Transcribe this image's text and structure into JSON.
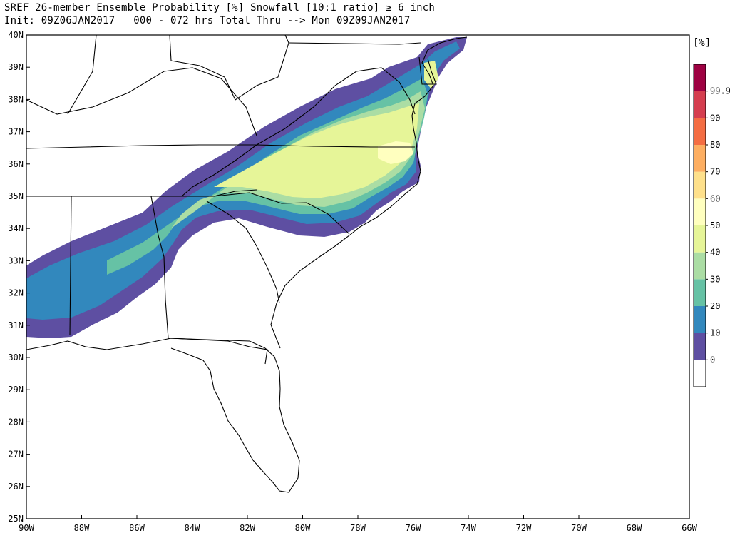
{
  "header": {
    "line1": "SREF 26-member Ensemble Probability [%] Snowfall [10:1 ratio] ≥ 6 inch",
    "line2": "Init: 09Z06JAN2017   000 - 072 hrs Total Thru --> Mon 09Z09JAN2017"
  },
  "map": {
    "lon_range": [
      -90,
      -66
    ],
    "lat_range": [
      25,
      40
    ],
    "lon_ticks": [
      -90,
      -88,
      -86,
      -84,
      -82,
      -80,
      -78,
      -76,
      -74,
      -72,
      -70,
      -68,
      -66
    ],
    "lat_ticks": [
      25,
      26,
      27,
      28,
      29,
      30,
      31,
      32,
      33,
      34,
      35,
      36,
      37,
      38,
      39,
      40
    ],
    "lon_tick_labels": [
      "90W",
      "88W",
      "86W",
      "84W",
      "82W",
      "80W",
      "78W",
      "76W",
      "74W",
      "72W",
      "70W",
      "68W",
      "66W"
    ],
    "lat_tick_labels": [
      "25N",
      "26N",
      "27N",
      "28N",
      "29N",
      "30N",
      "31N",
      "32N",
      "33N",
      "34N",
      "35N",
      "36N",
      "37N",
      "38N",
      "39N",
      "40N"
    ]
  },
  "colorbar": {
    "unit_label": "[%]",
    "levels": [
      "0",
      "10",
      "20",
      "30",
      "40",
      "50",
      "60",
      "70",
      "80",
      "90",
      "99.9"
    ],
    "colors": [
      "#ffffff",
      "#5e4fa2",
      "#3288bd",
      "#66c2a5",
      "#abdda4",
      "#e6f598",
      "#ffffbf",
      "#fee08b",
      "#fdae61",
      "#f46d43",
      "#d53e4f",
      "#9e0142"
    ]
  }
}
